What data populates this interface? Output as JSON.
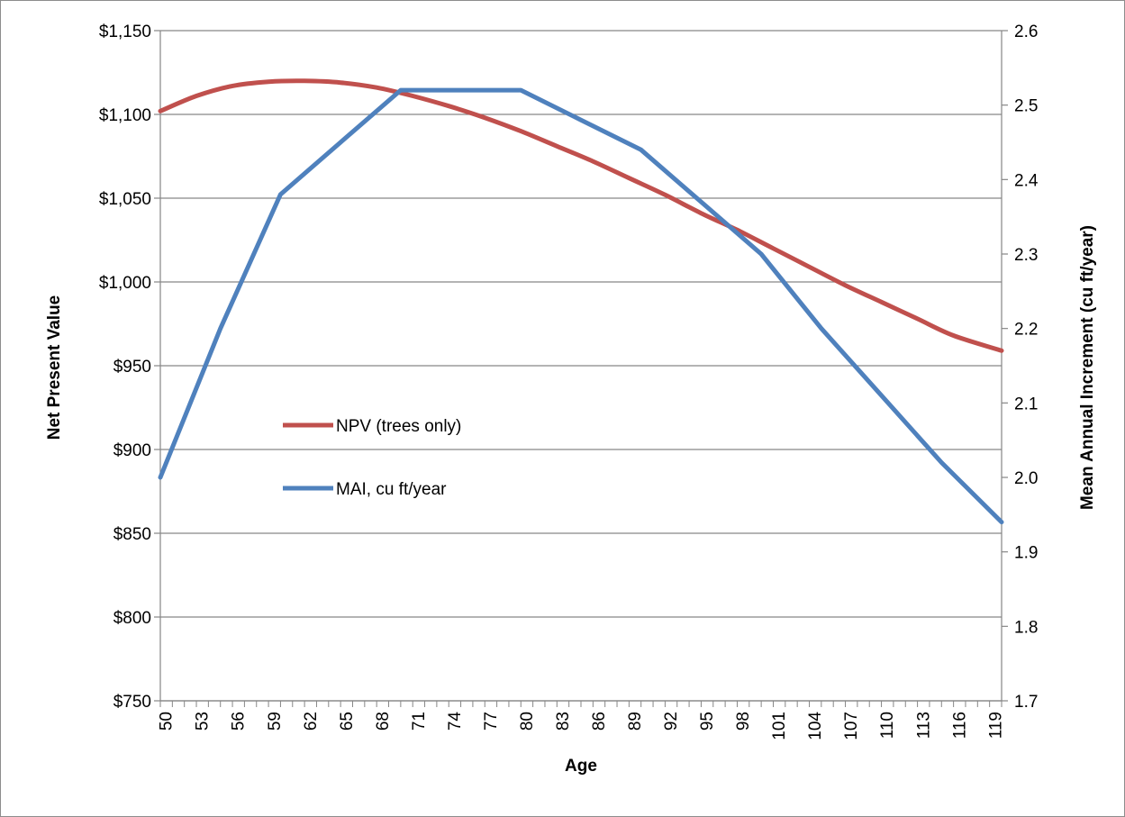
{
  "chart_data": {
    "type": "line",
    "xlabel": "Age",
    "ylabel_left": "Net Present Value",
    "ylabel_right": "Mean Annual Increment (cu ft/year)",
    "x_min": 50,
    "x_max": 120,
    "x_tick_labels": [
      50,
      53,
      56,
      59,
      62,
      65,
      68,
      71,
      74,
      77,
      80,
      83,
      86,
      89,
      92,
      95,
      98,
      101,
      104,
      107,
      110,
      113,
      116,
      119
    ],
    "y_left": {
      "min": 750,
      "max": 1150,
      "ticks": [
        750,
        800,
        850,
        900,
        950,
        1000,
        1050,
        1100,
        1150
      ],
      "tick_labels": [
        "$750",
        "$800",
        "$850",
        "$900",
        "$950",
        "$1,000",
        "$1,050",
        "$1,100",
        "$1,150"
      ]
    },
    "y_right": {
      "min": 1.7,
      "max": 2.6,
      "ticks": [
        1.7,
        1.8,
        1.9,
        2.0,
        2.1,
        2.2,
        2.3,
        2.4,
        2.5,
        2.6
      ],
      "tick_labels": [
        "1.7",
        "1.8",
        "1.9",
        "2.0",
        "2.1",
        "2.2",
        "2.3",
        "2.4",
        "2.5",
        "2.6"
      ]
    },
    "grid": "horizontal",
    "legend_position": "inside-left",
    "series": [
      {
        "name": "NPV (trees only)",
        "axis": "left",
        "color": "#c0504d",
        "x": [
          50,
          53,
          56,
          59,
          62,
          65,
          68,
          71,
          74,
          77,
          80,
          83,
          86,
          89,
          92,
          95,
          98,
          101,
          104,
          107,
          110,
          113,
          116,
          120
        ],
        "values": [
          1102,
          1111,
          1117,
          1119.5,
          1120,
          1119,
          1116,
          1111,
          1105,
          1098,
          1090,
          1081,
          1072,
          1062,
          1052,
          1041,
          1031,
          1020,
          1009,
          998,
          988,
          978,
          968,
          959
        ]
      },
      {
        "name": "MAI, cu ft/year",
        "axis": "right",
        "color": "#4f81bd",
        "x": [
          50,
          55,
          60,
          65,
          70,
          75,
          80,
          85,
          90,
          95,
          100,
          105,
          110,
          115,
          120
        ],
        "values": [
          2.0,
          2.2,
          2.38,
          2.45,
          2.52,
          2.52,
          2.52,
          2.48,
          2.44,
          2.37,
          2.3,
          2.2,
          2.11,
          2.02,
          1.94
        ]
      }
    ]
  }
}
